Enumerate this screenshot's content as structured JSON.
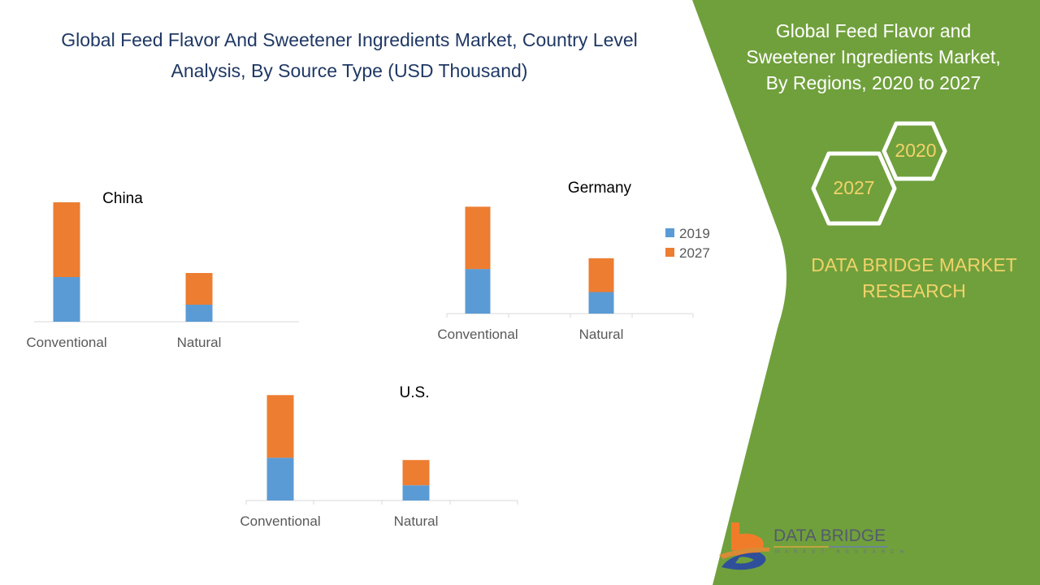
{
  "title": {
    "line1": "Global Feed Flavor And Sweetener Ingredients Market, Country Level",
    "line2": "Analysis, By Source Type  (USD Thousand)"
  },
  "side_panel": {
    "title_line1": "Global Feed Flavor and",
    "title_line2": "Sweetener Ingredients Market,",
    "title_line3": "By Regions, 2020 to 2027",
    "hex_2020": "2020",
    "hex_2027": "2027",
    "brand_line1": "DATA BRIDGE MARKET",
    "brand_line2": "RESEARCH",
    "logo_text": "DATA BRIDGE",
    "logo_subtext": "MARKET RESEARCH"
  },
  "colors": {
    "series_2019": "#5b9bd5",
    "series_2027": "#ed7d31",
    "panel_green": "#70a03c",
    "brand_yellow": "#f1d369",
    "title_navy": "#1f3864"
  },
  "chart_data": [
    {
      "type": "bar",
      "stacked": true,
      "title": "China",
      "categories": [
        "Conventional",
        "Natural"
      ],
      "series": [
        {
          "name": "2019",
          "values": [
            55,
            21
          ]
        },
        {
          "name": "2027",
          "values": [
            92,
            39
          ]
        }
      ],
      "ylim": [
        0,
        150
      ],
      "grid": false,
      "legend": "none"
    },
    {
      "type": "bar",
      "stacked": true,
      "title": "Germany",
      "categories": [
        "Conventional",
        "Natural"
      ],
      "series": [
        {
          "name": "2019",
          "values": [
            58,
            28
          ]
        },
        {
          "name": "2027",
          "values": [
            81,
            44
          ]
        }
      ],
      "ylim": [
        0,
        150
      ],
      "grid": false,
      "legend": "right"
    },
    {
      "type": "bar",
      "stacked": true,
      "title": "U.S.",
      "categories": [
        "Conventional",
        "Natural"
      ],
      "series": [
        {
          "name": "2019",
          "values": [
            56,
            20
          ]
        },
        {
          "name": "2027",
          "values": [
            82,
            33
          ]
        }
      ],
      "ylim": [
        0,
        150
      ],
      "grid": false,
      "legend": "none"
    }
  ],
  "legend": {
    "items": [
      {
        "label": "2019"
      },
      {
        "label": "2027"
      }
    ]
  }
}
